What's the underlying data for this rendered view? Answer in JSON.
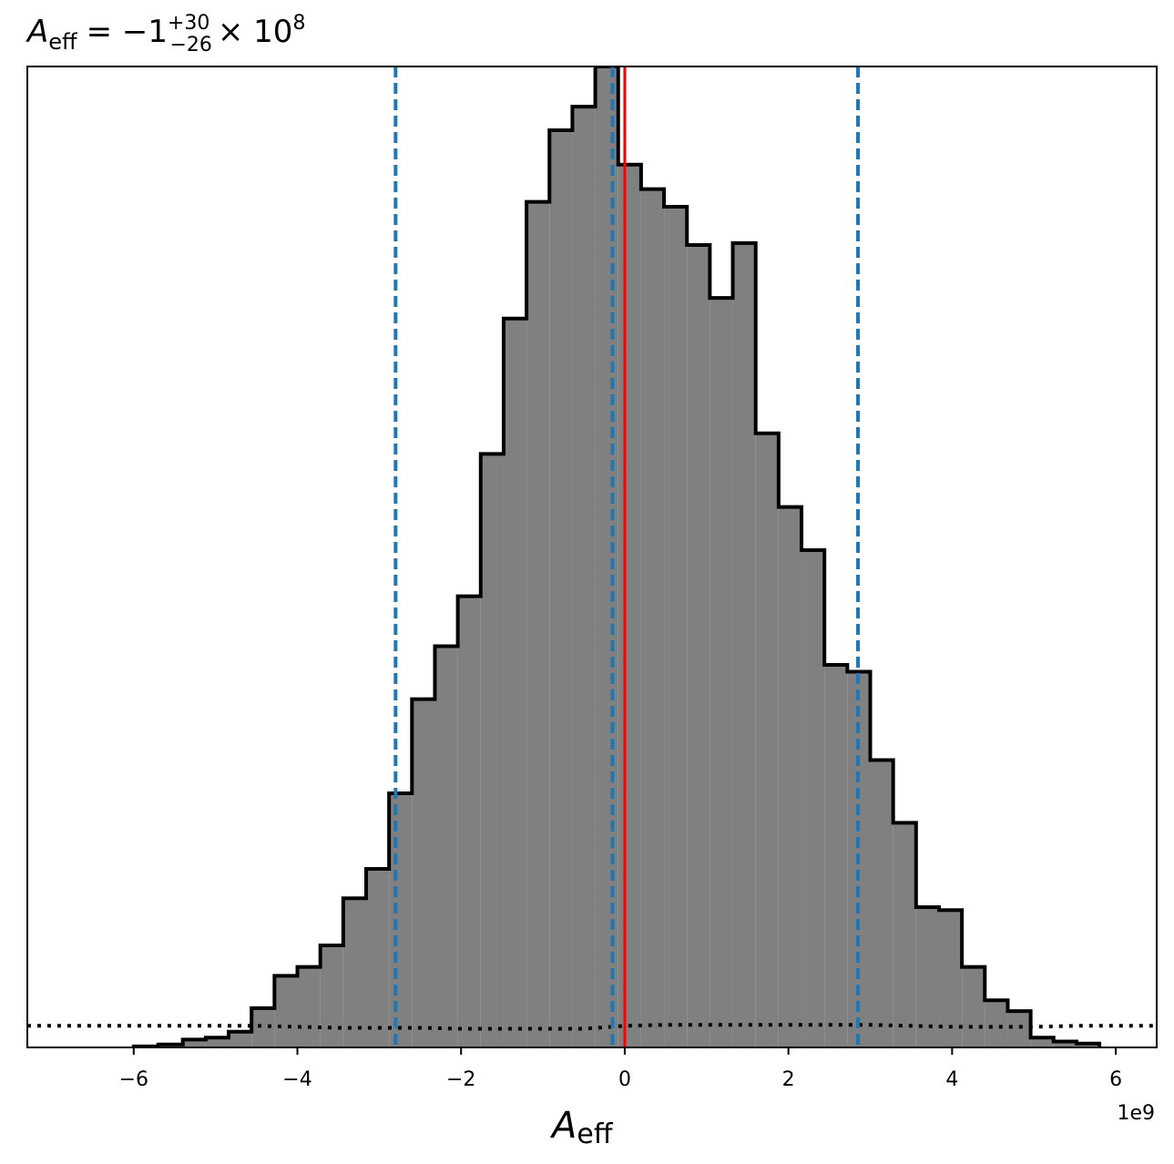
{
  "chart_data": {
    "type": "histogram",
    "title": {
      "symbol": "A",
      "symbol_sub": "eff",
      "equals": "= −1",
      "sup": "+30",
      "sub": "−26",
      "times": "× 10",
      "exp": "8"
    },
    "xlabel": {
      "symbol": "A",
      "sub": "eff"
    },
    "x_offset_label": "1e9",
    "xlim": [
      -7.3,
      6.5
    ],
    "ylim": [
      0,
      1.0
    ],
    "x_ticks": [
      {
        "value": -6,
        "label": "−6"
      },
      {
        "value": -4,
        "label": "−4"
      },
      {
        "value": -2,
        "label": "−2"
      },
      {
        "value": 0,
        "label": "0"
      },
      {
        "value": 2,
        "label": "2"
      },
      {
        "value": 4,
        "label": "4"
      },
      {
        "value": 6,
        "label": "6"
      }
    ],
    "y_ticks_visible": false,
    "bins": {
      "edges": [
        -5.4,
        -5.12,
        -4.84,
        -4.56,
        -4.28,
        -4.0,
        -3.72,
        -3.44,
        -3.16,
        -2.88,
        -2.6,
        -2.32,
        -2.04,
        -1.76,
        -1.48,
        -1.2,
        -0.92,
        -0.64,
        -0.36,
        -0.08,
        0.2,
        0.48,
        0.76,
        1.04,
        1.32,
        1.6,
        1.88,
        2.16,
        2.44,
        2.72,
        3.0,
        3.28,
        3.56,
        3.84,
        4.12,
        4.4,
        4.68,
        4.96,
        5.24,
        5.52,
        5.8
      ],
      "values": [
        0.008,
        0.01,
        0.016,
        0.04,
        0.073,
        0.082,
        0.104,
        0.152,
        0.182,
        0.259,
        0.355,
        0.409,
        0.46,
        0.605,
        0.743,
        0.862,
        0.935,
        0.959,
        1.0,
        0.9,
        0.875,
        0.857,
        0.818,
        0.764,
        0.82,
        0.626,
        0.551,
        0.507,
        0.39,
        0.383,
        0.293,
        0.229,
        0.143,
        0.14,
        0.082,
        0.048,
        0.037,
        0.01,
        0.006,
        0.004
      ]
    },
    "tail_bins": {
      "edges": [
        -6.0,
        -5.7,
        -5.4
      ],
      "values": [
        0.001,
        0.003
      ]
    },
    "fill_color": "#808080",
    "edge_color": "#000000",
    "vlines_dashed": {
      "color": "#1f77b4",
      "values": [
        -2.8,
        -0.15,
        2.85
      ]
    },
    "vline_solid": {
      "color": "#ff0000",
      "value": 0.0
    },
    "prior_dotted": {
      "color": "#000000",
      "points": [
        [
          -7.3,
          0.022
        ],
        [
          -4.5,
          0.022
        ],
        [
          -4.0,
          0.021
        ],
        [
          -3.5,
          0.02
        ],
        [
          -3.0,
          0.02
        ],
        [
          -2.5,
          0.02
        ],
        [
          -2.0,
          0.019
        ],
        [
          -1.5,
          0.019
        ],
        [
          -1.0,
          0.019
        ],
        [
          -0.5,
          0.019
        ],
        [
          0.0,
          0.022
        ],
        [
          0.5,
          0.023
        ],
        [
          1.0,
          0.023
        ],
        [
          1.5,
          0.023
        ],
        [
          2.0,
          0.023
        ],
        [
          2.5,
          0.023
        ],
        [
          3.0,
          0.023
        ],
        [
          3.5,
          0.022
        ],
        [
          4.0,
          0.021
        ],
        [
          4.5,
          0.021
        ],
        [
          5.0,
          0.021
        ],
        [
          5.5,
          0.022
        ],
        [
          6.0,
          0.022
        ],
        [
          6.5,
          0.022
        ]
      ]
    }
  }
}
